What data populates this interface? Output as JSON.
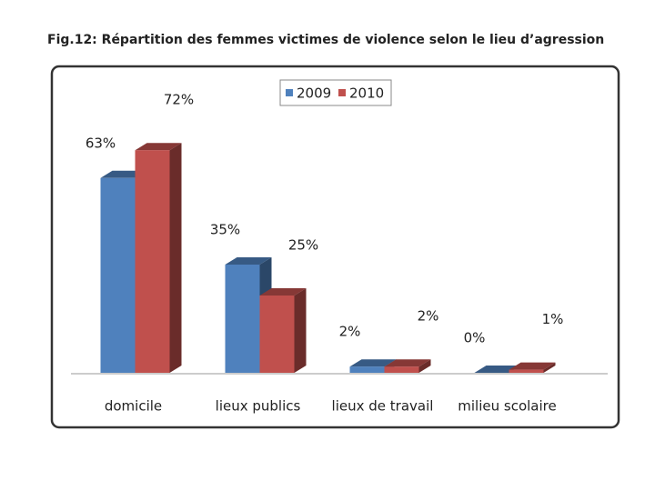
{
  "chart_data": {
    "type": "bar3d",
    "title": "Fig.12: Répartition des femmes victimes de violence selon le lieu d’agression",
    "categories": [
      "domicile",
      "lieux publics",
      "lieux de travail",
      "milieu scolaire"
    ],
    "series": [
      {
        "name": "2009",
        "color": "#4f81bd",
        "values": [
          63,
          35,
          2,
          0
        ],
        "value_labels": [
          "63%",
          "35%",
          "2%",
          "0%"
        ]
      },
      {
        "name": "2010",
        "color": "#c0504d",
        "values": [
          72,
          25,
          2,
          1
        ],
        "value_labels": [
          "72%",
          "25%",
          "2%",
          "1%"
        ]
      }
    ]
  }
}
